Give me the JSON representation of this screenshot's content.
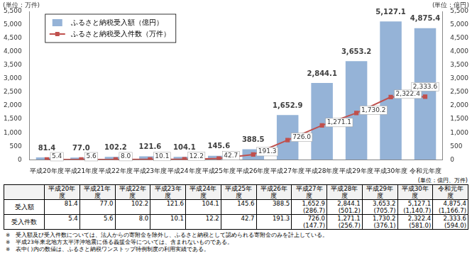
{
  "chart_data": {
    "type": "bar",
    "ylabel": "(単位：万件)",
    "y2label": "(単位：億円)",
    "categories": [
      "平成20年度",
      "平成21年度",
      "平成22年度",
      "平成23年度",
      "平成24年度",
      "平成25年度",
      "平成26年度",
      "平成27年度",
      "平成28年度",
      "平成29年度",
      "平成30年度",
      "令和元年度"
    ],
    "ylim": [
      0,
      5500
    ],
    "yticks": [
      0,
      500,
      {
        "value": 1000,
        "label": "1,000"
      },
      {
        "value": 1500,
        "label": "1,500"
      },
      {
        "value": 2000,
        "label": "2,000"
      },
      {
        "value": 2500,
        "label": "2,500"
      },
      {
        "value": 3000,
        "label": "3,000"
      },
      {
        "value": 3500,
        "label": "3,500"
      },
      {
        "value": 4000,
        "label": "4,000"
      },
      {
        "value": 4500,
        "label": "4,500"
      },
      {
        "value": 5000,
        "label": "5,000"
      },
      {
        "value": 5500,
        "label": "5,500"
      }
    ],
    "y2lim": [
      0,
      5500
    ],
    "y2ticks": [
      0,
      500,
      {
        "value": 1000,
        "label": "1,000"
      },
      {
        "value": 1500,
        "label": "1,500"
      },
      {
        "value": 2000,
        "label": "2,000"
      },
      {
        "value": 2500,
        "label": "2,500"
      },
      {
        "value": 3000,
        "label": "3,000"
      },
      {
        "value": 3500,
        "label": "3,500"
      },
      {
        "value": 4000,
        "label": "4,000"
      },
      {
        "value": 4500,
        "label": "4,500"
      },
      {
        "value": 5000,
        "label": "5,000"
      },
      {
        "value": 5500,
        "label": "5,500"
      }
    ],
    "grid": false,
    "legend": "upper left",
    "data_labels": true,
    "series": [
      {
        "name": "ふるさと納税受入額（億円）",
        "type": "bar",
        "axis": "y2",
        "color": "#95b3d7",
        "values": [
          81.4,
          77.0,
          102.2,
          121.6,
          104.1,
          145.6,
          388.5,
          1652.9,
          2844.1,
          3653.2,
          5127.1,
          4875.4
        ],
        "value_labels": [
          "81.4",
          "77.0",
          "102.2",
          "121.6",
          "104.1",
          "145.6",
          "388.5",
          "1,652.9",
          "2,844.1",
          "3,653.2",
          "5,127.1",
          "4,875.4"
        ]
      },
      {
        "name": "ふるさと納税受入件数（万件）",
        "type": "line",
        "axis": "y",
        "color": "#c0504d",
        "marker": "square",
        "values": [
          5.4,
          5.6,
          8.0,
          10.1,
          12.2,
          42.7,
          191.3,
          726.0,
          1271.1,
          1730.2,
          2322.4,
          2333.6
        ],
        "value_labels": [
          "5.4",
          "5.6",
          "8.0",
          "10.1",
          "12.2",
          "42.7",
          "191.3",
          "726.0",
          "1,271.1",
          "1,730.2",
          "2,322.4",
          "2,333.6"
        ]
      }
    ]
  },
  "table": {
    "unit": "(単位：億円、万件)",
    "columns": [
      "平成20年度",
      "平成21年度",
      "平成22年度",
      "平成23年度",
      "平成24年度",
      "平成25年度",
      "平成26年度",
      "平成27年度",
      "平成28年度",
      "平成29年度",
      "平成30年度",
      "令和元年度"
    ],
    "rows": [
      {
        "label": "受入額",
        "cells": [
          "81.4",
          "77.0",
          "102.2",
          "121.6",
          "104.1",
          "145.6",
          "388.5",
          "1,652.9",
          "2,844.1",
          "3,653.2",
          "5,127.1",
          "4,875.4"
        ],
        "sub_cells": [
          null,
          null,
          null,
          null,
          null,
          null,
          null,
          "(286.7)",
          "(501.2)",
          "(705.7)",
          "(1,140.7)",
          "(1,166.7)"
        ]
      },
      {
        "label": "受入件数",
        "cells": [
          "5.4",
          "5.6",
          "8.0",
          "10.1",
          "12.2",
          "42.7",
          "191.3",
          "726.0",
          "1,271.1",
          "1,730.2",
          "2,322.4",
          "2,333.6"
        ],
        "sub_cells": [
          null,
          null,
          null,
          null,
          null,
          null,
          null,
          "(147.7)",
          "(256.7)",
          "(376.1)",
          "(581.0)",
          "(594.0)"
        ]
      }
    ]
  },
  "notes": [
    "※　受入額及び受入件数については、法人からの寄附金を除外し、ふるさと納税として認められる寄附金のみを計上している。",
    "※　平成23年東北地方太平洋沖地震に係る義援金等については、含まれないものである。",
    "※　表中( )内の数値は、ふるさと納税ワンストップ特例制度の利用実績である。"
  ]
}
